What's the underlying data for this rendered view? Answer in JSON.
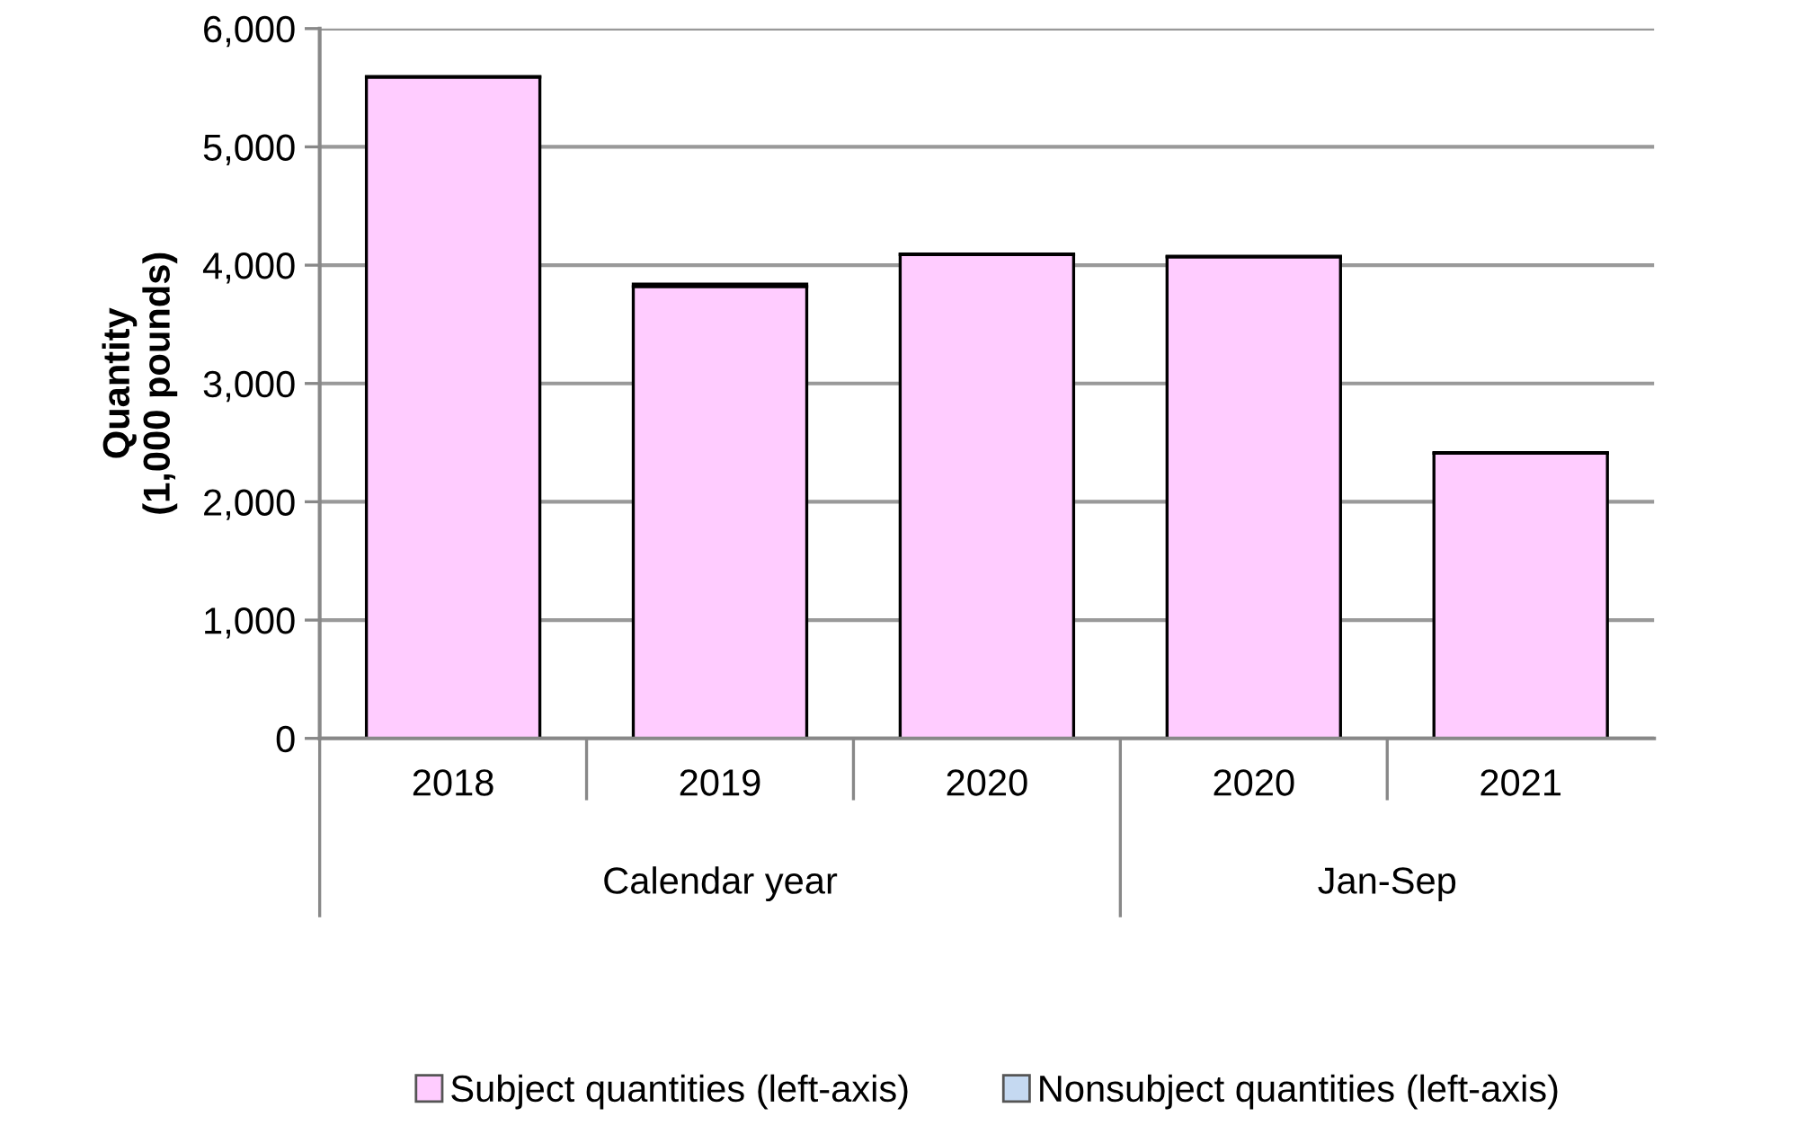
{
  "chart_data": {
    "type": "bar",
    "stacked": true,
    "ylabel": "Quantity\n(1,000 pounds)",
    "categories": [
      "2018",
      "2019",
      "2020",
      "2020",
      "2021"
    ],
    "series": [
      {
        "name": "Subject quantities (left-axis)",
        "color": "#ffccff",
        "values": [
          5590,
          3820,
          4090,
          4070,
          2410
        ]
      },
      {
        "name": "Nonsubject quantities (left-axis)",
        "color": "#c5d9f1",
        "values": [
          5,
          20,
          5,
          5,
          5
        ]
      }
    ],
    "ylim": [
      0,
      6000
    ],
    "yticks": [
      {
        "value": 0,
        "label": "0"
      },
      {
        "value": 1000,
        "label": "1,000"
      },
      {
        "value": 2000,
        "label": "2,000"
      },
      {
        "value": 3000,
        "label": "3,000"
      },
      {
        "value": 4000,
        "label": "4,000"
      },
      {
        "value": 5000,
        "label": "5,000"
      },
      {
        "value": 6000,
        "label": "6,000"
      }
    ],
    "grid": "y",
    "legend": "bottom",
    "annotations": [
      "Calendar year",
      "Jan-Sep"
    ]
  }
}
